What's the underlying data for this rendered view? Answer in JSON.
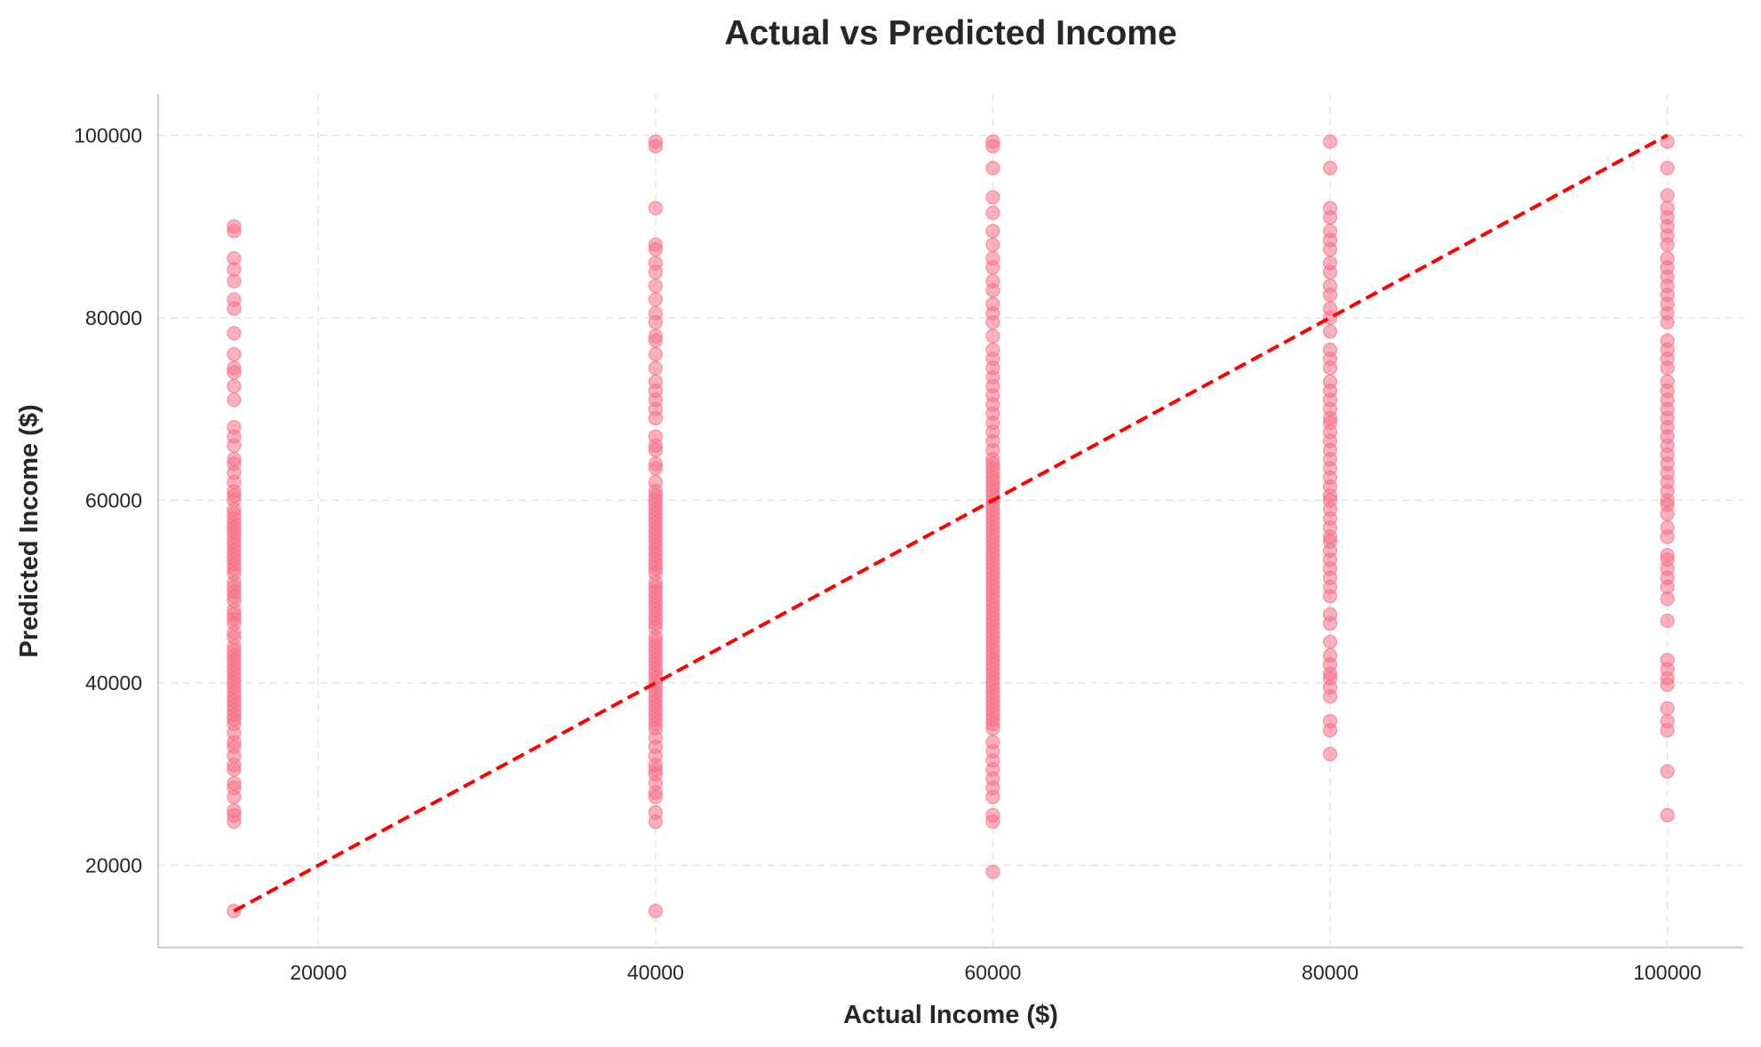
{
  "chart_data": {
    "type": "scatter",
    "title": "Actual vs Predicted Income",
    "xlabel": "Actual Income ($)",
    "ylabel": "Predicted Income ($)",
    "xlim": [
      10500,
      104500
    ],
    "ylim": [
      11000,
      104500
    ],
    "xticks": [
      20000,
      40000,
      60000,
      80000,
      100000
    ],
    "yticks": [
      20000,
      40000,
      60000,
      80000,
      100000
    ],
    "xtick_labels": [
      "20000",
      "40000",
      "60000",
      "80000",
      "100000"
    ],
    "ytick_labels": [
      "20000",
      "40000",
      "60000",
      "80000",
      "100000"
    ],
    "grid": true,
    "colors": {
      "points": "#f77189",
      "reference_line": "#ff0000",
      "grid": "#e6e6e6",
      "axis": "#bfbfbf"
    },
    "reference_line": {
      "style": "dashed",
      "points": [
        [
          15000,
          15000
        ],
        [
          100000,
          100000
        ]
      ]
    },
    "series": [
      {
        "groups": [
          {
            "x": 15000,
            "y": [
              15000,
              24800,
              25500,
              26000,
              27500,
              28500,
              29000,
              30500,
              31000,
              32000,
              33000,
              33500,
              34500,
              35500,
              36000,
              36500,
              37000,
              37500,
              38000,
              38500,
              39000,
              39500,
              40000,
              40500,
              41000,
              41500,
              42000,
              42500,
              43000,
              43500,
              44000,
              45000,
              45500,
              46500,
              47000,
              47500,
              48000,
              49000,
              49500,
              50000,
              50500,
              51000,
              52000,
              52500,
              53000,
              53500,
              54000,
              54500,
              55000,
              55500,
              56000,
              56500,
              57000,
              57500,
              58000,
              58500,
              59000,
              60000,
              60500,
              61000,
              62000,
              63000,
              64000,
              64500,
              66000,
              67000,
              68000,
              71000,
              72500,
              74000,
              74500,
              76000,
              78300,
              81000,
              82000,
              84000,
              85300,
              86500,
              89500,
              90000
            ]
          },
          {
            "x": 40000,
            "y": [
              15000,
              24800,
              25800,
              27500,
              28000,
              29000,
              30000,
              30500,
              31000,
              32000,
              33000,
              34000,
              35000,
              35500,
              36000,
              36500,
              37000,
              37500,
              38000,
              38500,
              39000,
              39500,
              40000,
              40500,
              41000,
              41500,
              42000,
              42500,
              43000,
              43500,
              44000,
              44500,
              45000,
              46000,
              46500,
              47000,
              47500,
              48000,
              48500,
              49000,
              49500,
              50000,
              50500,
              51000,
              52000,
              52500,
              53000,
              53500,
              54000,
              54500,
              55000,
              55500,
              56000,
              56500,
              57000,
              57500,
              58000,
              58500,
              59000,
              59500,
              60000,
              60500,
              61000,
              62000,
              63500,
              64000,
              65500,
              66000,
              67000,
              69000,
              70000,
              71000,
              72000,
              73000,
              74500,
              76000,
              77500,
              78000,
              79500,
              80500,
              82000,
              83500,
              85000,
              86000,
              87500,
              88000,
              92000,
              98800,
              99300
            ]
          },
          {
            "x": 60000,
            "y": [
              19300,
              24800,
              25500,
              27500,
              28500,
              29500,
              30500,
              31500,
              32500,
              33500,
              35000,
              35500,
              36000,
              36500,
              37000,
              37500,
              38000,
              38500,
              39000,
              39500,
              40000,
              40500,
              41000,
              41500,
              42000,
              42500,
              43000,
              43500,
              44000,
              44500,
              45000,
              45500,
              46000,
              46500,
              47000,
              47500,
              48000,
              48500,
              49000,
              49500,
              50000,
              50500,
              51000,
              51500,
              52000,
              52500,
              53000,
              53500,
              54000,
              54500,
              55000,
              55500,
              56000,
              56500,
              57000,
              57500,
              58000,
              58500,
              59000,
              59500,
              60000,
              60500,
              61000,
              61500,
              62000,
              62500,
              63000,
              63500,
              64000,
              64500,
              65500,
              66500,
              67500,
              68500,
              69500,
              70500,
              71500,
              72500,
              73500,
              74500,
              75500,
              76500,
              78000,
              79500,
              80500,
              81500,
              83000,
              84000,
              85500,
              86500,
              88000,
              89500,
              91500,
              93200,
              96400,
              98800,
              99300
            ]
          },
          {
            "x": 80000,
            "y": [
              32200,
              34800,
              35800,
              38500,
              39500,
              40500,
              41000,
              42000,
              43000,
              44500,
              46500,
              47500,
              49500,
              50500,
              51500,
              52500,
              53500,
              54500,
              55500,
              56000,
              57000,
              58000,
              59000,
              60000,
              60500,
              61500,
              62500,
              63500,
              64500,
              65500,
              66500,
              67500,
              68500,
              69000,
              70000,
              71000,
              72000,
              73000,
              74500,
              75500,
              76500,
              78500,
              80000,
              81000,
              82500,
              83500,
              85000,
              86000,
              87500,
              88500,
              89500,
              91000,
              92000,
              96400,
              99300
            ]
          },
          {
            "x": 100000,
            "y": [
              25500,
              30300,
              34800,
              35800,
              37200,
              39800,
              40500,
              41500,
              42500,
              46800,
              49200,
              50500,
              51500,
              52500,
              53500,
              54000,
              56000,
              57000,
              58500,
              59500,
              60000,
              61000,
              62000,
              63000,
              64000,
              65000,
              66000,
              67000,
              68000,
              69000,
              70000,
              71000,
              72000,
              73000,
              74500,
              75500,
              76500,
              77500,
              79500,
              80500,
              81500,
              82500,
              83500,
              84500,
              85500,
              86500,
              88000,
              89000,
              90000,
              91000,
              92000,
              93400,
              96400,
              99300
            ]
          }
        ]
      }
    ]
  }
}
